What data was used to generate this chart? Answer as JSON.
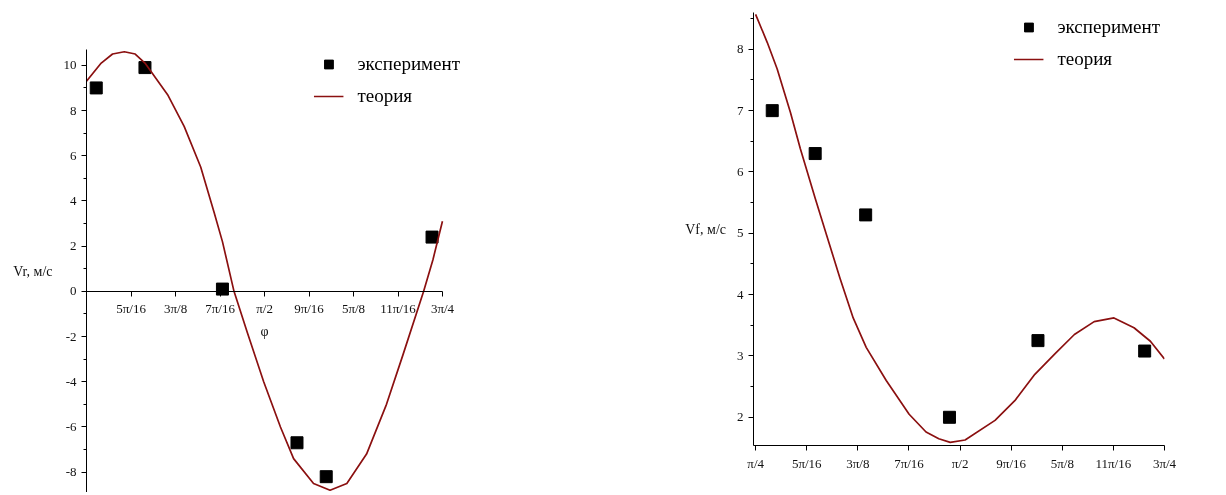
{
  "chart_data": [
    {
      "type": "scatter",
      "xlabel": "φ",
      "ylabel": "Vr, м/с",
      "legend": "top right",
      "xlim": [
        0.785,
        2.3562
      ],
      "ylim": [
        -8.9,
        10.7
      ],
      "xticks": [
        {
          "value": 0.7854,
          "label": null
        },
        {
          "value": 0.9817,
          "label": "5π/16"
        },
        {
          "value": 1.1781,
          "label": "3π/8"
        },
        {
          "value": 1.3744,
          "label": "7π/16"
        },
        {
          "value": 1.5708,
          "label": "π/2"
        },
        {
          "value": 1.7671,
          "label": "9π/16"
        },
        {
          "value": 1.9635,
          "label": "5π/8"
        },
        {
          "value": 2.1598,
          "label": "11π/16"
        },
        {
          "value": 2.3562,
          "label": "3π/4"
        }
      ],
      "yticks": [
        -8,
        {
          "value": -7,
          "label": null
        },
        -6,
        {
          "value": -5,
          "label": null
        },
        -4,
        {
          "value": -3,
          "label": null
        },
        -2,
        {
          "value": -1,
          "label": null
        },
        0,
        {
          "value": 1,
          "label": null
        },
        2,
        {
          "value": 3,
          "label": null
        },
        4,
        {
          "value": 5,
          "label": null
        },
        6,
        {
          "value": 7,
          "label": null
        },
        8,
        {
          "value": 9,
          "label": null
        },
        10
      ],
      "series": [
        {
          "name": "эксперимент",
          "marker": "square",
          "color": "#000000",
          "x": [
            0.828,
            1.043,
            1.385,
            1.714,
            1.843,
            2.31
          ],
          "values": [
            9.0,
            9.9,
            0.1,
            -6.7,
            -8.2,
            2.4
          ]
        },
        {
          "name": "теория",
          "type": "line",
          "color": "#8b1010",
          "x": [
            0.785,
            0.85,
            0.9,
            0.952,
            1.0,
            1.043,
            1.143,
            1.216,
            1.289,
            1.348,
            1.385,
            1.436,
            1.494,
            1.567,
            1.641,
            1.699,
            1.787,
            1.86,
            1.934,
            2.021,
            2.109,
            2.182,
            2.273,
            2.314,
            2.356
          ],
          "values": [
            9.3,
            10.1,
            10.5,
            10.6,
            10.5,
            10.1,
            8.7,
            7.3,
            5.5,
            3.5,
            2.2,
            0.0,
            -1.8,
            -4.0,
            -6.0,
            -7.4,
            -8.5,
            -8.8,
            -8.5,
            -7.2,
            -5.0,
            -2.8,
            0.0,
            1.4,
            3.1
          ]
        }
      ]
    },
    {
      "type": "scatter",
      "ylabel": "Vf, м/с",
      "legend": "top right",
      "xlim": [
        0.777,
        2.3562
      ],
      "ylim": [
        1.54,
        8.6
      ],
      "xticks": [
        {
          "value": 0.7854,
          "label": "π/4"
        },
        {
          "value": 0.9817,
          "label": "5π/16"
        },
        {
          "value": 1.1781,
          "label": "3π/8"
        },
        {
          "value": 1.3744,
          "label": "7π/16"
        },
        {
          "value": 1.5708,
          "label": "π/2"
        },
        {
          "value": 1.7671,
          "label": "9π/16"
        },
        {
          "value": 1.9635,
          "label": "5π/8"
        },
        {
          "value": 2.1598,
          "label": "11π/16"
        },
        {
          "value": 2.3562,
          "label": "3π/4"
        }
      ],
      "yticks": [
        2,
        {
          "value": 2.5,
          "label": null
        },
        3,
        {
          "value": 3.5,
          "label": null
        },
        4,
        {
          "value": 4.5,
          "label": null
        },
        5,
        {
          "value": 5.5,
          "label": null
        },
        6,
        {
          "value": 6.5,
          "label": null
        },
        7,
        {
          "value": 7.5,
          "label": null
        },
        8,
        {
          "value": 8.5,
          "label": null
        }
      ],
      "series": [
        {
          "name": "эксперимент",
          "marker": "square",
          "color": "#000000",
          "x": [
            0.849,
            1.014,
            1.208,
            1.53,
            1.87,
            2.28
          ],
          "values": [
            7.0,
            6.3,
            5.3,
            2.0,
            3.25,
            3.08
          ]
        },
        {
          "name": "теория",
          "type": "line",
          "color": "#8b1010",
          "x": [
            0.785,
            0.83,
            0.868,
            0.919,
            0.957,
            1.014,
            1.058,
            1.109,
            1.16,
            1.21,
            1.287,
            1.375,
            1.44,
            1.489,
            1.533,
            1.59,
            1.705,
            1.781,
            1.858,
            1.934,
            2.01,
            2.086,
            2.162,
            2.239,
            2.302,
            2.356
          ],
          "values": [
            8.57,
            8.11,
            7.68,
            6.97,
            6.38,
            5.57,
            4.97,
            4.27,
            3.62,
            3.14,
            2.6,
            2.05,
            1.76,
            1.65,
            1.59,
            1.63,
            1.95,
            2.27,
            2.7,
            3.03,
            3.35,
            3.56,
            3.62,
            3.46,
            3.24,
            2.95
          ]
        }
      ]
    }
  ]
}
